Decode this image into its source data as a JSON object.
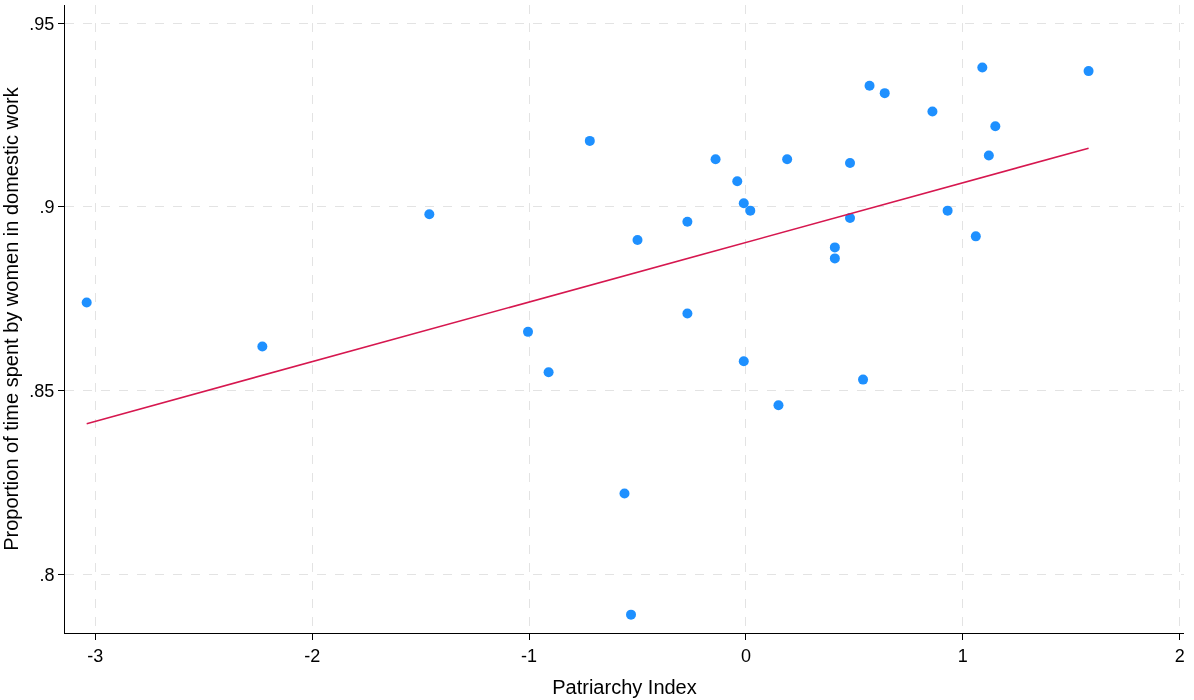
{
  "chart_data": {
    "type": "scatter",
    "xlabel": "Patriarchy Index",
    "ylabel": "Proportion of time spent by women in domestic work",
    "xlim": [
      -3.14,
      2.02
    ],
    "ylim": [
      0.784,
      0.955
    ],
    "xticks": [
      -3,
      -2,
      -1,
      0,
      1,
      2
    ],
    "yticks": [
      {
        "value": 0.8,
        "label": ".8"
      },
      {
        "value": 0.85,
        "label": ".85"
      },
      {
        "value": 0.9,
        "label": ".9"
      },
      {
        "value": 0.95,
        "label": ".95"
      }
    ],
    "grid": true,
    "series": [
      {
        "marker": "circle",
        "color": "#1e90ff",
        "x": [
          -3.04,
          -2.23,
          -1.46,
          -1.005,
          -0.91,
          -0.72,
          -0.5,
          -0.56,
          -0.53,
          -0.27,
          -0.27,
          -0.14,
          -0.04,
          -0.01,
          0.02,
          -0.01,
          0.15,
          0.19,
          0.41,
          0.41,
          0.48,
          0.48,
          0.54,
          0.57,
          0.64,
          0.86,
          0.93,
          1.06,
          1.09,
          1.12,
          1.15,
          1.58
        ],
        "values": [
          0.874,
          0.862,
          0.898,
          0.866,
          0.855,
          0.918,
          0.891,
          0.822,
          0.789,
          0.896,
          0.871,
          0.913,
          0.907,
          0.901,
          0.899,
          0.858,
          0.846,
          0.913,
          0.889,
          0.886,
          0.912,
          0.897,
          0.853,
          0.933,
          0.931,
          0.926,
          0.899,
          0.892,
          0.938,
          0.914,
          0.922,
          0.937
        ]
      },
      {
        "type": "line",
        "marker": "none",
        "line_style": "solid",
        "color": "#d6174f",
        "x": [
          -3.04,
          1.58
        ],
        "values": [
          0.841,
          0.916
        ]
      }
    ]
  }
}
